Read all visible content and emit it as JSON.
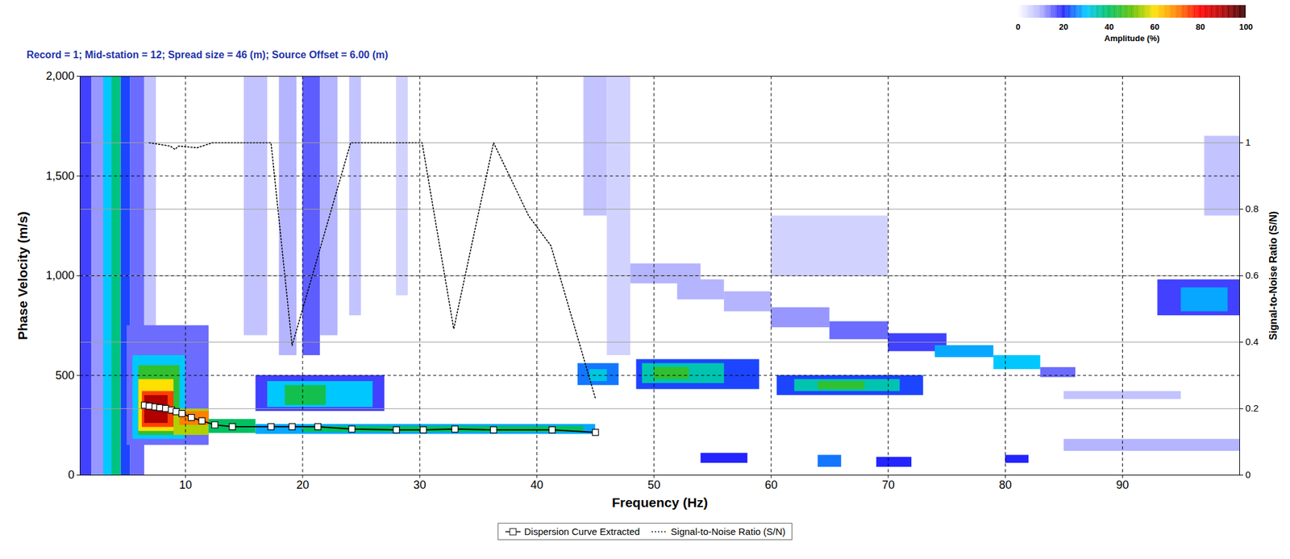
{
  "chart_data": {
    "type": "heatmap",
    "title": "Record = 1; Mid-station = 12; Spread size = 46 (m); Source Offset = 6.00 (m)",
    "x_label": "Frequency (Hz)",
    "y_label": "Phase Velocity (m/s)",
    "y2_label": "Signal-to-Noise Ratio (S/N)",
    "xlim": [
      1,
      100
    ],
    "xticks": [
      10,
      20,
      30,
      40,
      50,
      60,
      70,
      80,
      90
    ],
    "ylim": [
      0,
      2000
    ],
    "yticks": [
      0,
      500,
      {
        "value": 1000,
        "label": "1,000"
      },
      {
        "value": 1500,
        "label": "1,500"
      },
      {
        "value": 2000,
        "label": "2,000"
      }
    ],
    "y2lim": [
      0,
      1.2
    ],
    "y2ticks": [
      0,
      0.2,
      0.4,
      0.6,
      0.8,
      1
    ],
    "grid": true,
    "legend": "bottom",
    "colorbar": {
      "label": "Amplitude (%)",
      "range": [
        0,
        100
      ],
      "ticks": [
        0,
        20,
        40,
        60,
        80,
        100
      ]
    },
    "cells": [
      [
        1,
        2,
        0,
        2000,
        18
      ],
      [
        2,
        3,
        0,
        2000,
        12
      ],
      [
        3,
        3.7,
        0,
        2000,
        30
      ],
      [
        3.7,
        4.5,
        0,
        2000,
        38
      ],
      [
        4.5,
        5.3,
        0,
        2000,
        22
      ],
      [
        5.3,
        6.5,
        0,
        2000,
        15
      ],
      [
        6.5,
        7.5,
        700,
        2000,
        8
      ],
      [
        15,
        17,
        700,
        2000,
        8
      ],
      [
        18,
        19.5,
        600,
        2000,
        10
      ],
      [
        20,
        21.5,
        600,
        2000,
        16
      ],
      [
        21.5,
        23,
        700,
        2000,
        10
      ],
      [
        24,
        25,
        800,
        2000,
        8
      ],
      [
        28,
        29,
        900,
        2000,
        6
      ],
      [
        44,
        46,
        1300,
        2000,
        8
      ],
      [
        46,
        48,
        600,
        2000,
        6
      ],
      [
        60,
        70,
        1000,
        1300,
        6
      ],
      [
        97,
        100,
        1300,
        1700,
        8
      ],
      [
        5,
        12,
        150,
        750,
        15
      ],
      [
        5.5,
        10,
        180,
        600,
        30
      ],
      [
        6,
        9.5,
        200,
        550,
        45
      ],
      [
        6,
        9,
        220,
        480,
        60
      ],
      [
        6.3,
        9,
        240,
        420,
        75
      ],
      [
        6.5,
        8.5,
        260,
        400,
        90
      ],
      [
        9,
        12,
        200,
        330,
        55
      ],
      [
        9.5,
        12,
        250,
        320,
        70
      ],
      [
        12,
        16,
        210,
        280,
        40
      ],
      [
        16,
        45,
        205,
        255,
        28
      ],
      [
        20,
        44,
        215,
        245,
        40
      ],
      [
        16,
        27,
        320,
        500,
        18
      ],
      [
        17,
        26,
        340,
        470,
        30
      ],
      [
        18.5,
        22,
        350,
        450,
        42
      ],
      [
        43.5,
        47,
        450,
        560,
        25
      ],
      [
        44.5,
        46,
        470,
        530,
        32
      ],
      [
        48.5,
        59,
        430,
        580,
        22
      ],
      [
        49,
        56,
        460,
        560,
        35
      ],
      [
        50,
        53,
        480,
        540,
        45
      ],
      [
        60.5,
        73,
        400,
        500,
        22
      ],
      [
        62,
        71,
        420,
        480,
        35
      ],
      [
        64,
        68,
        430,
        470,
        45
      ],
      [
        48,
        54,
        960,
        1060,
        10
      ],
      [
        52,
        56,
        880,
        980,
        10
      ],
      [
        56,
        60,
        820,
        920,
        10
      ],
      [
        60,
        65,
        740,
        840,
        12
      ],
      [
        65,
        70,
        680,
        770,
        15
      ],
      [
        70,
        75,
        620,
        710,
        18
      ],
      [
        74,
        79,
        590,
        650,
        28
      ],
      [
        79,
        83,
        530,
        600,
        30
      ],
      [
        83,
        86,
        490,
        540,
        15
      ],
      [
        93,
        100,
        800,
        980,
        18
      ],
      [
        95,
        99,
        820,
        940,
        28
      ],
      [
        85,
        100,
        120,
        180,
        10
      ],
      [
        85,
        95,
        380,
        420,
        8
      ],
      [
        54,
        58,
        60,
        110,
        20
      ],
      [
        64,
        66,
        40,
        100,
        25
      ],
      [
        69,
        72,
        40,
        90,
        20
      ],
      [
        80,
        82,
        60,
        100,
        20
      ]
    ],
    "series": [
      {
        "name": "Dispersion Curve Extracted",
        "type": "line",
        "marker": "square",
        "color": "#000000",
        "x": [
          6.5,
          6.9,
          7.4,
          7.8,
          8.3,
          8.8,
          9.2,
          9.7,
          10.5,
          11.4,
          12.5,
          14.0,
          17.3,
          19.1,
          21.3,
          24.2,
          28.0,
          30.3,
          33.0,
          36.3,
          41.3,
          45.0
        ],
        "values": [
          351,
          346,
          342,
          338,
          334,
          326,
          318,
          309,
          289,
          272,
          252,
          243,
          243,
          243,
          243,
          231,
          227,
          227,
          231,
          227,
          227,
          214
        ]
      },
      {
        "name": "Signal-to-Noise Ratio (S/N)",
        "type": "line",
        "line_style": "dotted",
        "axis": "y2",
        "color": "#000000",
        "x": [
          6.9,
          8.7,
          9.1,
          9.4,
          11.0,
          12.3,
          17.3,
          19.1,
          24.1,
          30.2,
          32.9,
          36.3,
          39.3,
          41.2,
          45.0
        ],
        "values": [
          1.0,
          0.99,
          0.98,
          0.99,
          0.985,
          1.0,
          1.0,
          0.39,
          1.0,
          1.0,
          0.44,
          1.0,
          0.78,
          0.69,
          0.23
        ]
      }
    ]
  }
}
